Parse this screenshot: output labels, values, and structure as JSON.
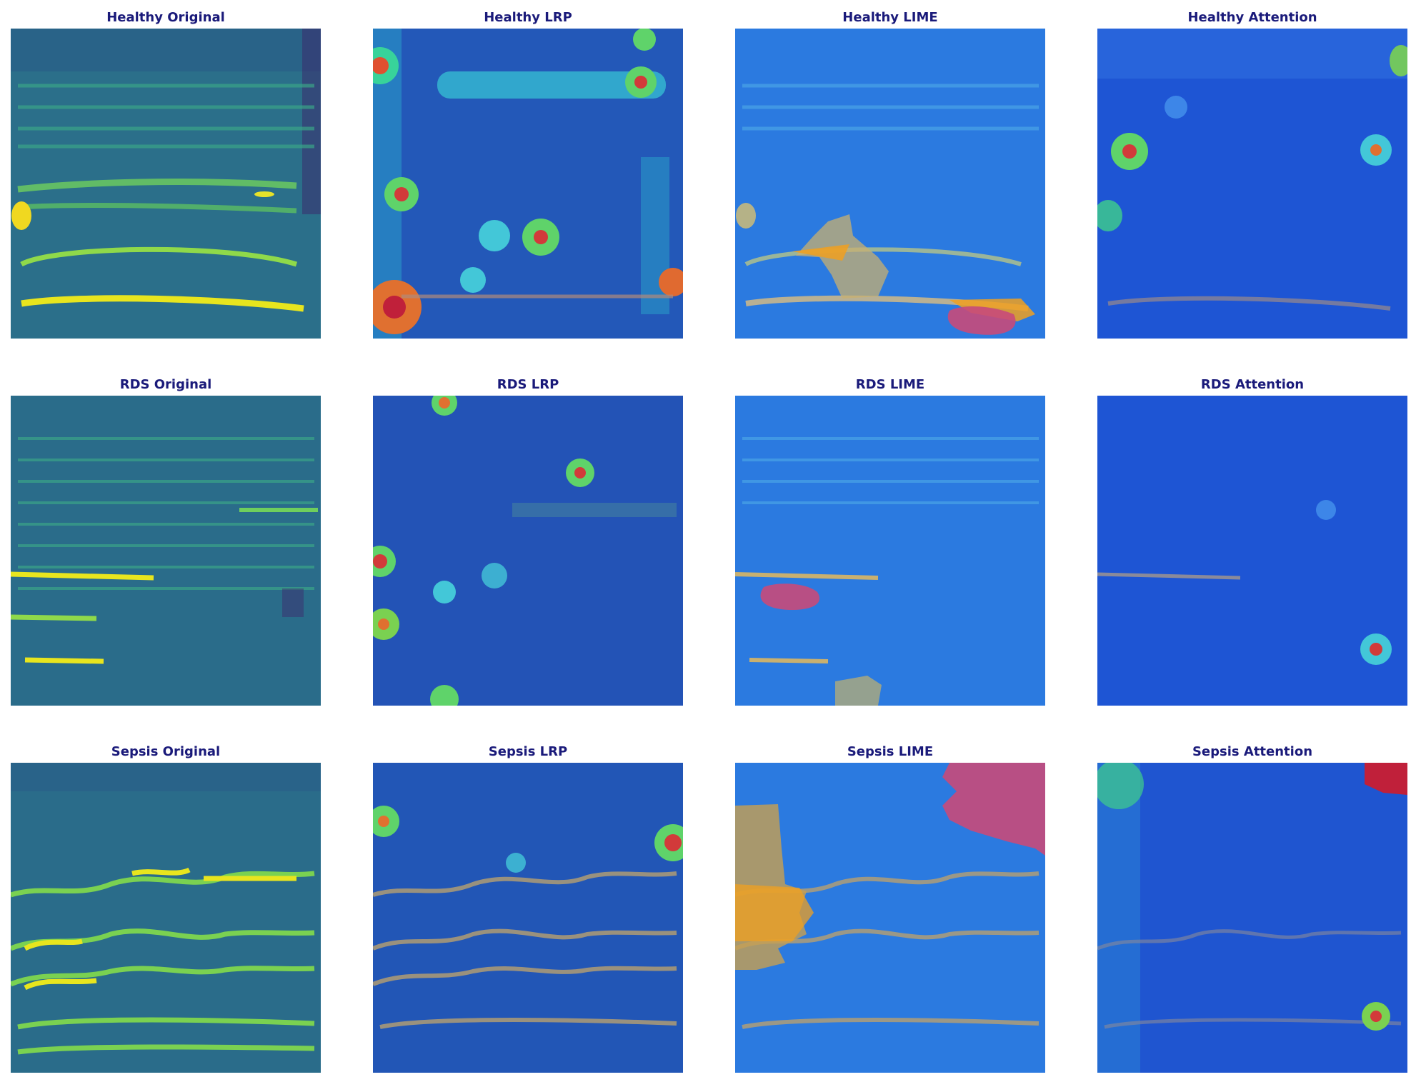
{
  "panels": [
    {
      "title": "Healthy Original",
      "row": "Healthy",
      "method": "Original"
    },
    {
      "title": "Healthy LRP",
      "row": "Healthy",
      "method": "LRP"
    },
    {
      "title": "Healthy LIME",
      "row": "Healthy",
      "method": "LIME"
    },
    {
      "title": "Healthy Attention",
      "row": "Healthy",
      "method": "Attention"
    },
    {
      "title": "RDS Original",
      "row": "RDS",
      "method": "Original"
    },
    {
      "title": "RDS LRP",
      "row": "RDS",
      "method": "LRP"
    },
    {
      "title": "RDS LIME",
      "row": "RDS",
      "method": "LIME"
    },
    {
      "title": "RDS Attention",
      "row": "RDS",
      "method": "Attention"
    },
    {
      "title": "Sepsis Original",
      "row": "Sepsis",
      "method": "Original"
    },
    {
      "title": "Sepsis LRP",
      "row": "Sepsis",
      "method": "LRP"
    },
    {
      "title": "Sepsis LIME",
      "row": "Sepsis",
      "method": "LIME"
    },
    {
      "title": "Sepsis Attention",
      "row": "Sepsis",
      "method": "Attention"
    }
  ],
  "colors": {
    "title_text": "#1a1a7a",
    "viridis_bg": "#2a7a8e",
    "viridis_band": "#7ad151",
    "viridis_peak": "#fde725",
    "jet_bg": "#1f5bd6",
    "jet_hot": "#c0203a",
    "lime_mask_pink": "#c84a7a",
    "lime_mask_orange": "#f0a020"
  }
}
